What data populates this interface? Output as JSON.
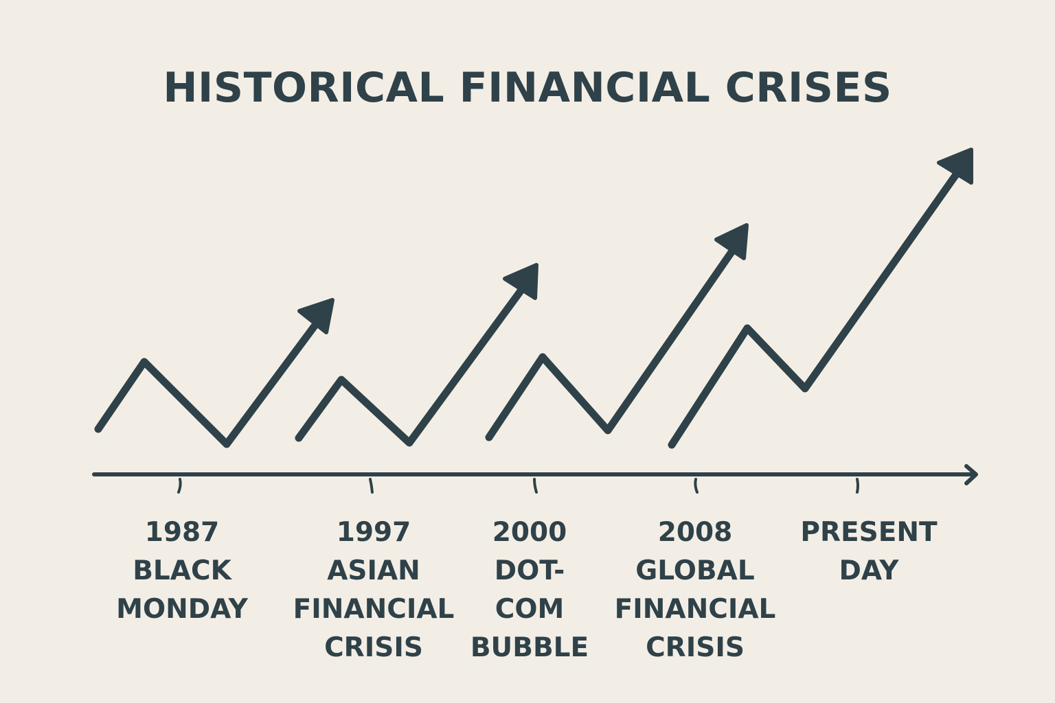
{
  "title": "HISTORICAL FINANCIAL CRISES",
  "colors": {
    "background": "#f3eee5",
    "ink": "#2f4149"
  },
  "timeline": [
    {
      "lines": [
        "1987",
        "BLACK",
        "MONDAY"
      ]
    },
    {
      "lines": [
        "1997",
        "ASIAN",
        "FINANCIAL",
        "CRISIS"
      ]
    },
    {
      "lines": [
        "2000",
        "DOT-",
        "COM",
        "BUBBLE"
      ]
    },
    {
      "lines": [
        "2008",
        "GLOBAL",
        "FINANCIAL",
        "CRISIS"
      ]
    },
    {
      "lines": [
        "PRESENT",
        "DAY"
      ]
    }
  ]
}
